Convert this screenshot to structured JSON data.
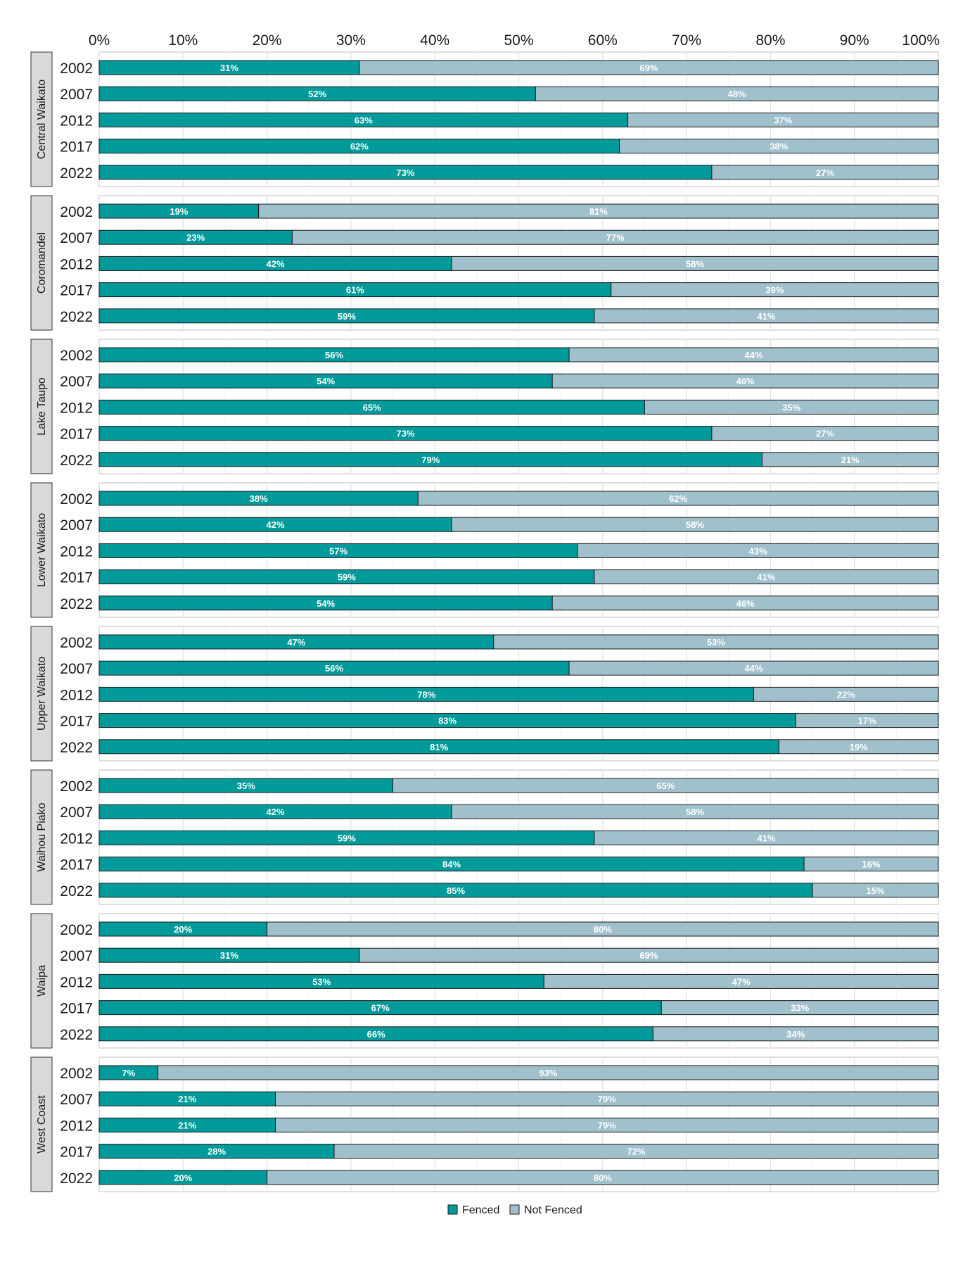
{
  "chart_data": {
    "type": "bar",
    "orientation": "horizontal",
    "stacked": "percent",
    "title": "",
    "xlabel": "",
    "ylabel": "",
    "xlim": [
      0,
      100
    ],
    "x_tick_labels": [
      "0%",
      "10%",
      "20%",
      "30%",
      "40%",
      "50%",
      "60%",
      "70%",
      "80%",
      "90%",
      "100%"
    ],
    "categories": [
      "2002",
      "2007",
      "2012",
      "2017",
      "2022"
    ],
    "facets": [
      {
        "name": "Central Waikato",
        "fenced": [
          31,
          52,
          63,
          62,
          73
        ],
        "not_fenced": [
          69,
          48,
          37,
          38,
          27
        ]
      },
      {
        "name": "Coromandel",
        "fenced": [
          19,
          23,
          42,
          61,
          59
        ],
        "not_fenced": [
          81,
          77,
          58,
          39,
          41
        ]
      },
      {
        "name": "Lake Taupo",
        "fenced": [
          56,
          54,
          65,
          73,
          79
        ],
        "not_fenced": [
          44,
          46,
          35,
          27,
          21
        ]
      },
      {
        "name": "Lower Waikato",
        "fenced": [
          38,
          42,
          57,
          59,
          54
        ],
        "not_fenced": [
          62,
          58,
          43,
          41,
          46
        ]
      },
      {
        "name": "Upper Waikato",
        "fenced": [
          47,
          56,
          78,
          83,
          81
        ],
        "not_fenced": [
          53,
          44,
          22,
          17,
          19
        ]
      },
      {
        "name": "Waihou Piako",
        "fenced": [
          35,
          42,
          59,
          84,
          85
        ],
        "not_fenced": [
          65,
          58,
          41,
          16,
          15
        ]
      },
      {
        "name": "Waipa",
        "fenced": [
          20,
          31,
          53,
          67,
          66
        ],
        "not_fenced": [
          80,
          69,
          47,
          33,
          34
        ]
      },
      {
        "name": "West Coast",
        "fenced": [
          7,
          21,
          21,
          28,
          20
        ],
        "not_fenced": [
          93,
          79,
          79,
          72,
          80
        ]
      }
    ],
    "series": [
      {
        "name": "Fenced",
        "color": "#009a9a"
      },
      {
        "name": "Not Fenced",
        "color": "#a0c0cc"
      }
    ],
    "legend": {
      "position": "bottom",
      "labels": [
        "Fenced",
        "Not Fenced"
      ]
    },
    "grid": true
  }
}
